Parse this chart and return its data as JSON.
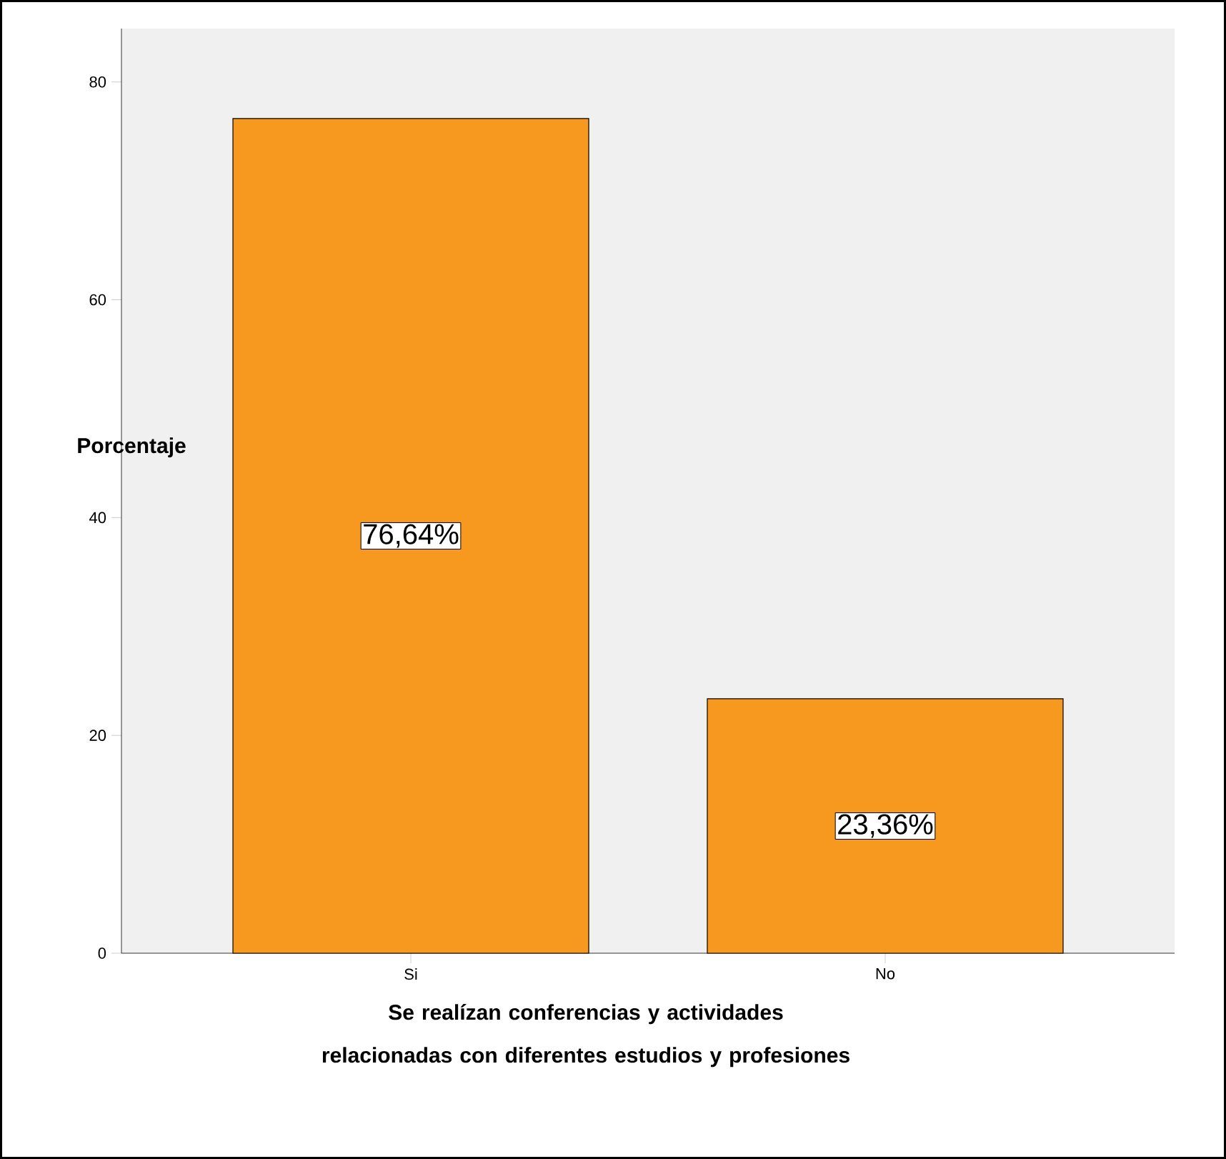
{
  "chart_data": {
    "type": "bar",
    "xlabel": "Se realízan conferencias y actividades relacionadas con diferentes estudios y profesiones",
    "ylabel": "Porcentaje",
    "categories": [
      "Si",
      "No"
    ],
    "values": [
      76.64,
      23.36
    ],
    "value_labels": [
      "76,64%",
      "23,36%"
    ],
    "color": "#f7991f",
    "ylim": [
      0,
      84.9
    ],
    "yticks": [
      0,
      20,
      40,
      60,
      80
    ]
  }
}
